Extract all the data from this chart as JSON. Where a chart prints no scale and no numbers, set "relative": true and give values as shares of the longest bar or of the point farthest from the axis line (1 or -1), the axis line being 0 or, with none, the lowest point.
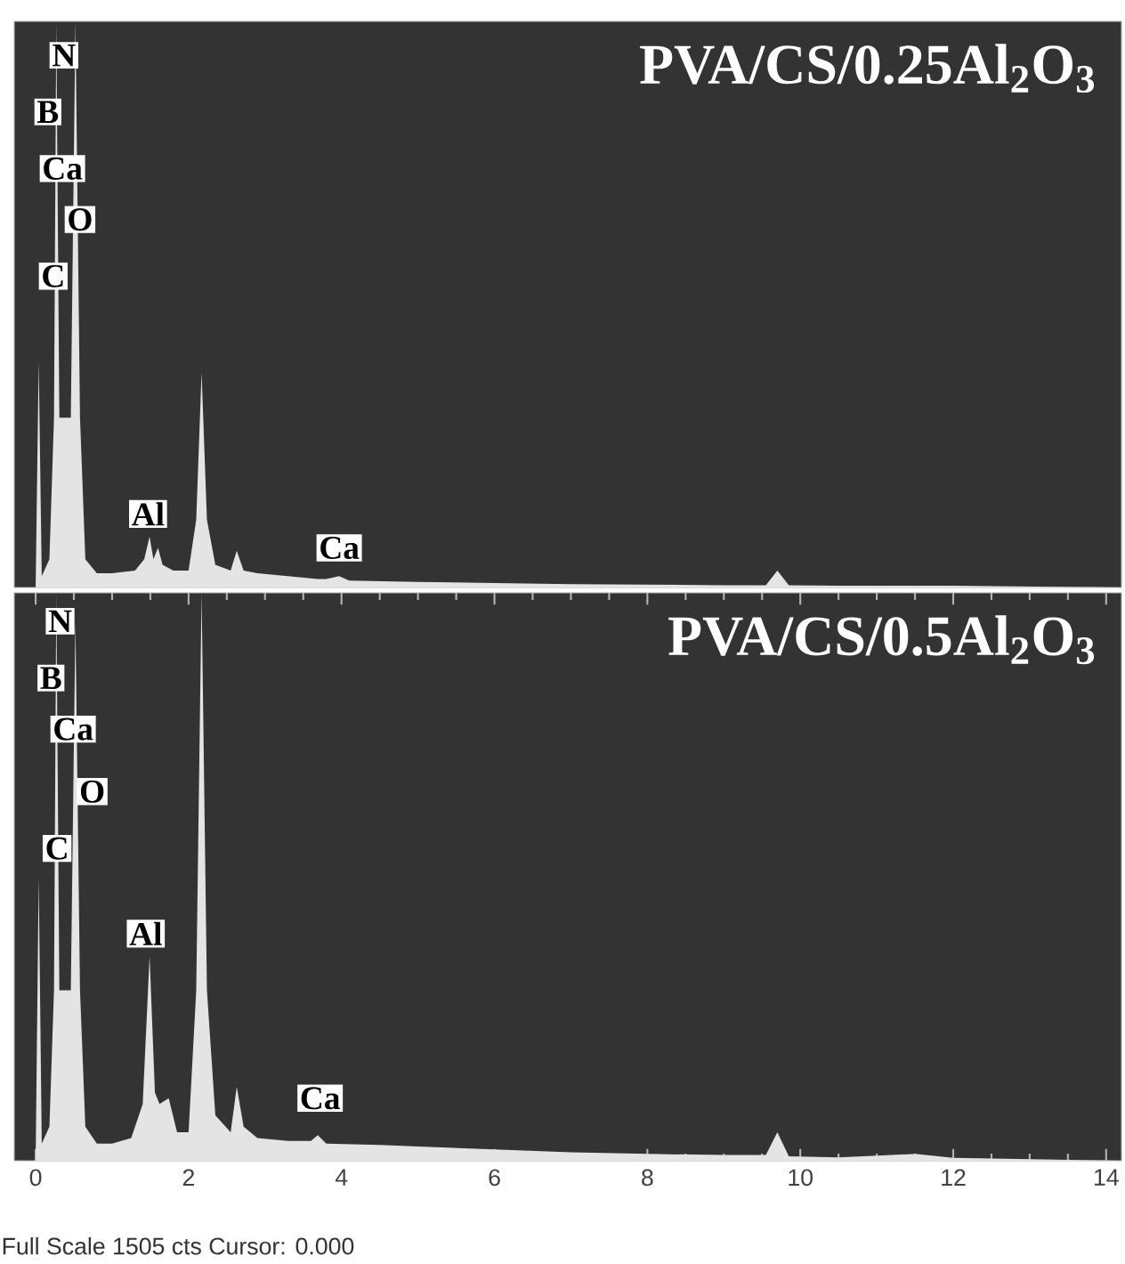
{
  "chart_data": [
    {
      "type": "area",
      "title": "PVA/CS/0.25Al$_{2}$O$_{3}$",
      "relative": true,
      "color": "#e4e4e4",
      "xlim": [
        -0.28,
        14.2
      ],
      "xticks": [
        0,
        2,
        4,
        6,
        8,
        10,
        12,
        14
      ],
      "tick_labels": false,
      "x": [
        -0.02,
        0,
        0.04,
        0.08,
        0.18,
        0.24,
        0.27,
        0.31,
        0.38,
        0.46,
        0.52,
        0.58,
        0.65,
        0.8,
        1.0,
        1.3,
        1.42,
        1.49,
        1.54,
        1.6,
        1.66,
        1.8,
        2.0,
        2.1,
        2.17,
        2.24,
        2.35,
        2.55,
        2.63,
        2.72,
        2.9,
        3.3,
        3.69,
        3.8,
        3.97,
        4.1,
        5.0,
        6.0,
        7.0,
        8.0,
        9.0,
        9.55,
        9.7,
        9.85,
        10.5,
        12,
        14.2
      ],
      "values": [
        0,
        0,
        0.4,
        0.02,
        0.05,
        0.3,
        1,
        0.3,
        0.3,
        0.3,
        1,
        0.3,
        0.05,
        0.025,
        0.025,
        0.03,
        0.05,
        0.09,
        0.05,
        0.07,
        0.04,
        0.03,
        0.03,
        0.12,
        0.38,
        0.12,
        0.04,
        0.03,
        0.065,
        0.03,
        0.025,
        0.02,
        0.015,
        0.015,
        0.02,
        0.012,
        0.01,
        0.008,
        0.006,
        0.005,
        0.004,
        0.004,
        0.03,
        0.004,
        0.003,
        0.003,
        0
      ],
      "annotations": [
        {
          "text": "N",
          "x": 0.37,
          "y": 0.94
        },
        {
          "text": "B",
          "x": 0.16,
          "y": 0.84
        },
        {
          "text": "Ca",
          "x": 0.35,
          "y": 0.74
        },
        {
          "text": "O",
          "x": 0.58,
          "y": 0.65
        },
        {
          "text": "C",
          "x": 0.23,
          "y": 0.55
        },
        {
          "text": "Al",
          "x": 1.47,
          "y": 0.13
        },
        {
          "text": "Ca",
          "x": 3.97,
          "y": 0.07
        }
      ]
    },
    {
      "type": "area",
      "title": "PVA/CS/0.5Al$_{2}$O$_{3}$",
      "relative": true,
      "color": "#e4e4e4",
      "xlim": [
        -0.28,
        14.2
      ],
      "xticks": [
        0,
        2,
        4,
        6,
        8,
        10,
        12,
        14
      ],
      "tick_labels": "x",
      "x": [
        -0.02,
        0,
        0.04,
        0.08,
        0.18,
        0.24,
        0.27,
        0.31,
        0.38,
        0.46,
        0.52,
        0.58,
        0.65,
        0.8,
        1.0,
        1.25,
        1.4,
        1.49,
        1.56,
        1.62,
        1.74,
        1.85,
        2.0,
        2.1,
        2.17,
        2.24,
        2.35,
        2.55,
        2.63,
        2.72,
        2.9,
        3.3,
        3.6,
        3.69,
        3.8,
        4.5,
        5.0,
        6.0,
        7.0,
        8.0,
        9.0,
        9.55,
        9.7,
        9.85,
        10.5,
        11.5,
        12,
        14.2
      ],
      "values": [
        0,
        0,
        0.5,
        0.03,
        0.06,
        0.3,
        1,
        0.3,
        0.3,
        0.3,
        0.95,
        0.3,
        0.06,
        0.03,
        0.03,
        0.04,
        0.1,
        0.36,
        0.12,
        0.1,
        0.11,
        0.05,
        0.05,
        0.3,
        1,
        0.3,
        0.08,
        0.05,
        0.13,
        0.06,
        0.04,
        0.035,
        0.035,
        0.045,
        0.03,
        0.028,
        0.025,
        0.02,
        0.015,
        0.012,
        0.01,
        0.01,
        0.05,
        0.008,
        0.006,
        0.012,
        0.005,
        0
      ],
      "annotations": [
        {
          "text": "N",
          "x": 0.32,
          "y": 0.95
        },
        {
          "text": "B",
          "x": 0.2,
          "y": 0.85
        },
        {
          "text": "Ca",
          "x": 0.49,
          "y": 0.76
        },
        {
          "text": "O",
          "x": 0.74,
          "y": 0.65
        },
        {
          "text": "C",
          "x": 0.28,
          "y": 0.55
        },
        {
          "text": "Al",
          "x": 1.44,
          "y": 0.4
        },
        {
          "text": "Ca",
          "x": 3.72,
          "y": 0.11
        },
        "Full Scale 1505 cts Cursor: 0.000"
      ]
    }
  ]
}
